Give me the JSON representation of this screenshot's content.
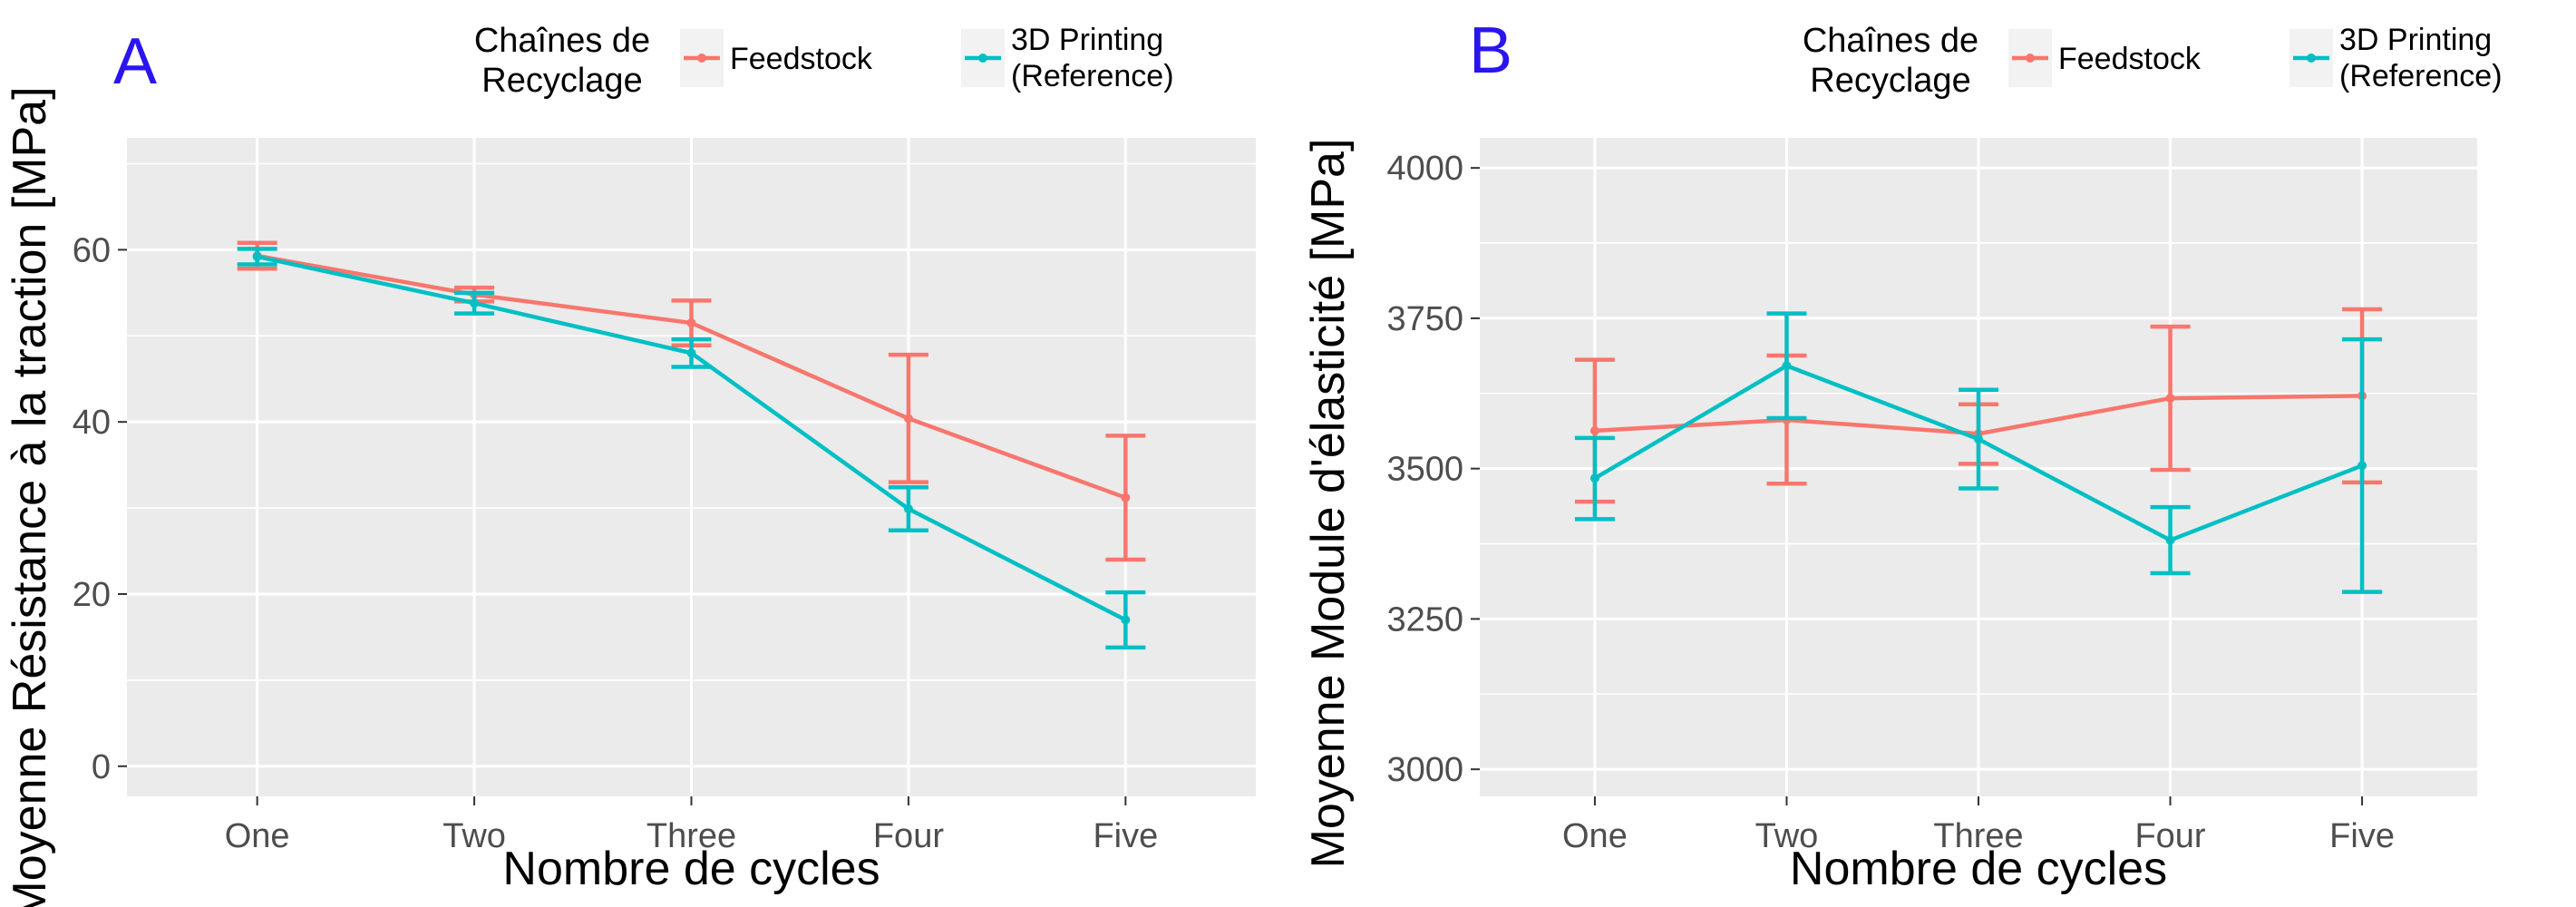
{
  "panels": [
    {
      "letter": "A",
      "legend": {
        "title_lines": [
          "Chaînes de",
          "Recyclage"
        ],
        "entries": [
          {
            "label_lines": [
              "Feedstock"
            ],
            "color": "#f8766d"
          },
          {
            "label_lines": [
              "3D Printing",
              "(Reference)"
            ],
            "color": "#00bfc4"
          }
        ]
      }
    },
    {
      "letter": "B",
      "legend": {
        "title_lines": [
          "Chaînes de",
          "Recyclage"
        ],
        "entries": [
          {
            "label_lines": [
              "Feedstock"
            ],
            "color": "#f8766d"
          },
          {
            "label_lines": [
              "3D Printing",
              "(Reference)"
            ],
            "color": "#00bfc4"
          }
        ]
      }
    }
  ],
  "chart_data": [
    {
      "type": "line",
      "categories": [
        "One",
        "Two",
        "Three",
        "Four",
        "Five"
      ],
      "xlabel": "Nombre de cycles",
      "ylabel": "Moyenne Résistance à la traction [MPa]",
      "ylim": [
        -3.5,
        73
      ],
      "yticks": [
        0,
        20,
        40,
        60
      ],
      "grid": true,
      "legend_position": "top",
      "series": [
        {
          "name": "Feedstock",
          "color": "#f8766d",
          "values": [
            59.3,
            54.8,
            51.5,
            40.4,
            31.2
          ],
          "error_low": [
            57.8,
            54.0,
            48.9,
            33.0,
            24.0
          ],
          "error_high": [
            60.8,
            55.6,
            54.1,
            47.8,
            38.4
          ]
        },
        {
          "name": "3D Printing (Reference)",
          "color": "#00bfc4",
          "values": [
            59.2,
            53.8,
            48.0,
            29.9,
            17.0
          ],
          "error_low": [
            58.3,
            52.6,
            46.4,
            27.4,
            13.8
          ],
          "error_high": [
            60.1,
            55.0,
            49.6,
            32.4,
            20.2
          ]
        }
      ]
    },
    {
      "type": "line",
      "categories": [
        "One",
        "Two",
        "Three",
        "Four",
        "Five"
      ],
      "xlabel": "Nombre de cycles",
      "ylabel": "Moyenne Module d'élasticité [MPa]",
      "ylim": [
        2955,
        4050
      ],
      "yticks": [
        3000,
        3250,
        3500,
        3750,
        4000
      ],
      "grid": true,
      "legend_position": "top",
      "series": [
        {
          "name": "Feedstock",
          "color": "#f8766d",
          "values": [
            3563,
            3581,
            3558,
            3617,
            3621
          ],
          "error_low": [
            3445,
            3475,
            3508,
            3498,
            3477
          ],
          "error_high": [
            3681,
            3688,
            3607,
            3736,
            3765
          ]
        },
        {
          "name": "3D Printing (Reference)",
          "color": "#00bfc4",
          "values": [
            3484,
            3671,
            3549,
            3381,
            3505
          ],
          "error_low": [
            3416,
            3584,
            3467,
            3326,
            3295
          ],
          "error_high": [
            3551,
            3758,
            3631,
            3436,
            3715
          ]
        }
      ]
    }
  ]
}
